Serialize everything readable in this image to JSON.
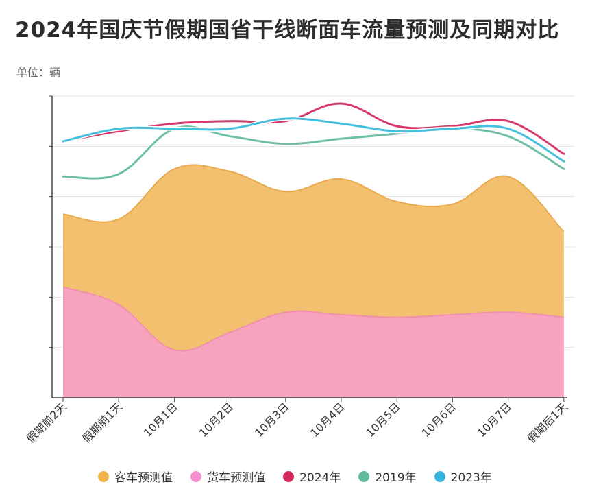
{
  "title": "2024年国庆节假期国省干线断面车流量预测及同期对比",
  "unit_label": "单位：辆",
  "chart_data": {
    "type": "area",
    "categories": [
      "假期前2天",
      "假期前1天",
      "10月1日",
      "10月2日",
      "10月3日",
      "10月4日",
      "10月5日",
      "10月6日",
      "10月7日",
      "假期后1天"
    ],
    "ylim": [
      0,
      6
    ],
    "grid": true,
    "legend_position": "bottom",
    "stacked_areas": [
      {
        "name": "客车预测值",
        "color": "#f2c06f",
        "values": [
          1.45,
          1.7,
          3.6,
          3.2,
          2.4,
          2.7,
          2.3,
          2.2,
          2.7,
          1.7
        ]
      },
      {
        "name": "货车预测值",
        "color": "#f7a3bd",
        "values": [
          2.2,
          1.85,
          0.95,
          1.3,
          1.7,
          1.65,
          1.6,
          1.65,
          1.7,
          1.6
        ]
      }
    ],
    "lines": [
      {
        "name": "2024年",
        "color": "#d63a6a",
        "values": [
          5.1,
          5.3,
          5.45,
          5.5,
          5.5,
          5.85,
          5.4,
          5.4,
          5.5,
          4.85
        ]
      },
      {
        "name": "2019年",
        "color": "#6fbfa8",
        "values": [
          4.4,
          4.45,
          5.35,
          5.2,
          5.05,
          5.15,
          5.25,
          5.35,
          5.2,
          4.55
        ]
      },
      {
        "name": "2023年",
        "color": "#47bfe0",
        "values": [
          5.1,
          5.35,
          5.35,
          5.35,
          5.55,
          5.45,
          5.3,
          5.35,
          5.35,
          4.7
        ]
      }
    ]
  },
  "legend": [
    {
      "label": "客车预测值",
      "color": "#f0b347"
    },
    {
      "label": "货车预测值",
      "color": "#f590d0"
    },
    {
      "label": "2024年",
      "color": "#d42a5b"
    },
    {
      "label": "2019年",
      "color": "#62b9a0"
    },
    {
      "label": "2023年",
      "color": "#37b4e0"
    }
  ]
}
